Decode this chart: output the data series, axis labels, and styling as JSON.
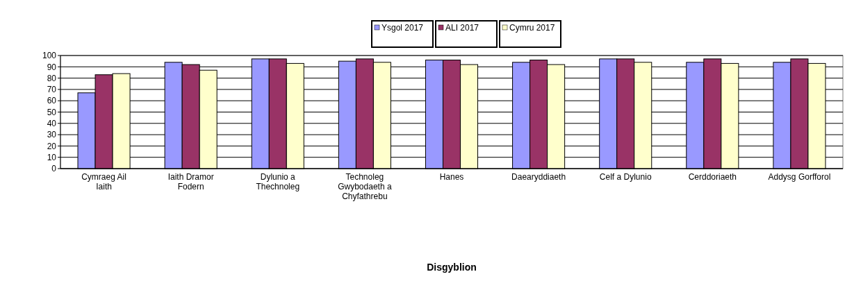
{
  "chart_data": {
    "type": "bar",
    "annotations": [
      "Disgyblion"
    ],
    "categories": [
      "Cymraeg Ail Iaith",
      "Iaith Dramor Fodern",
      "Dylunio a Thechnoleg",
      "Technoleg Gwybodaeth a Chyfathrebu",
      "Hanes",
      "Daearyddiaeth",
      "Celf a Dylunio",
      "Cerddoriaeth",
      "Addysg Gorfforol"
    ],
    "series": [
      {
        "name": "Ysgol 2017",
        "color": "#9999ff",
        "values": [
          67,
          94,
          97,
          95,
          96,
          94,
          97,
          94,
          94
        ]
      },
      {
        "name": "ALI 2017",
        "color": "#993366",
        "values": [
          83,
          92,
          97,
          97,
          96,
          96,
          97,
          97,
          97
        ]
      },
      {
        "name": "Cymru 2017",
        "color": "#ffffcc",
        "values": [
          84,
          87,
          93,
          94,
          92,
          92,
          94,
          93,
          93
        ]
      }
    ],
    "ylim": [
      0,
      100
    ],
    "yticks": [
      0,
      10,
      20,
      30,
      40,
      50,
      60,
      70,
      80,
      90,
      100
    ],
    "grid": "y",
    "legend": "top"
  }
}
